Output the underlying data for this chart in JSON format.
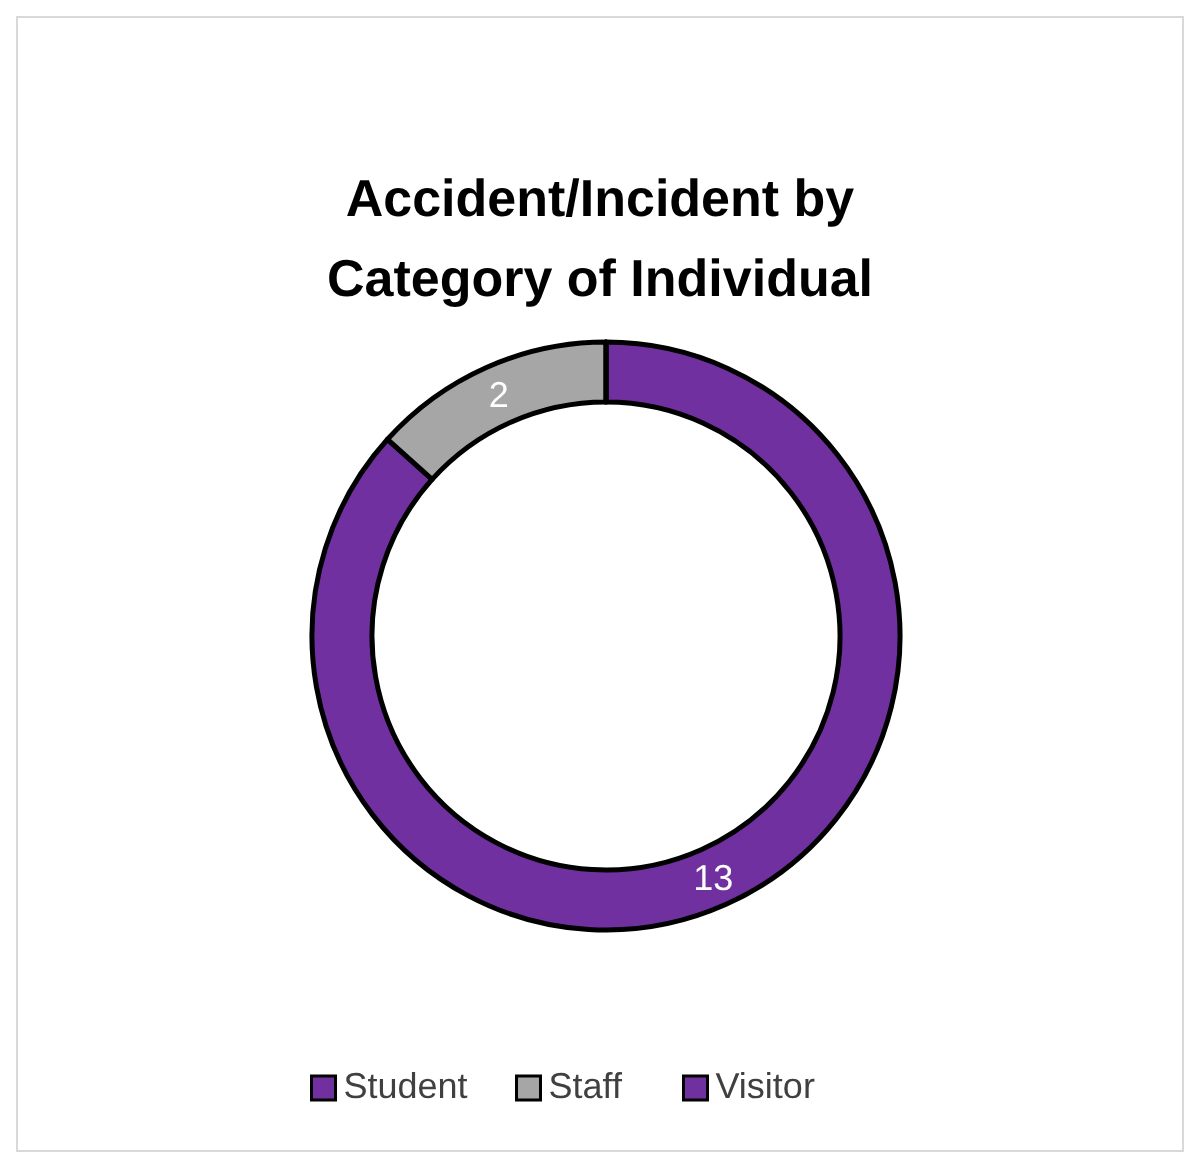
{
  "chart_data": {
    "type": "donut",
    "title": "Accident/Incident by Category of Individual",
    "categories": [
      "Student",
      "Staff",
      "Visitor"
    ],
    "values": [
      13,
      2,
      0
    ],
    "colors": [
      "#7030a0",
      "#a6a6a6",
      "#7030a0"
    ],
    "value_labels": [
      "13",
      "2",
      null
    ],
    "legend": "bottom"
  }
}
